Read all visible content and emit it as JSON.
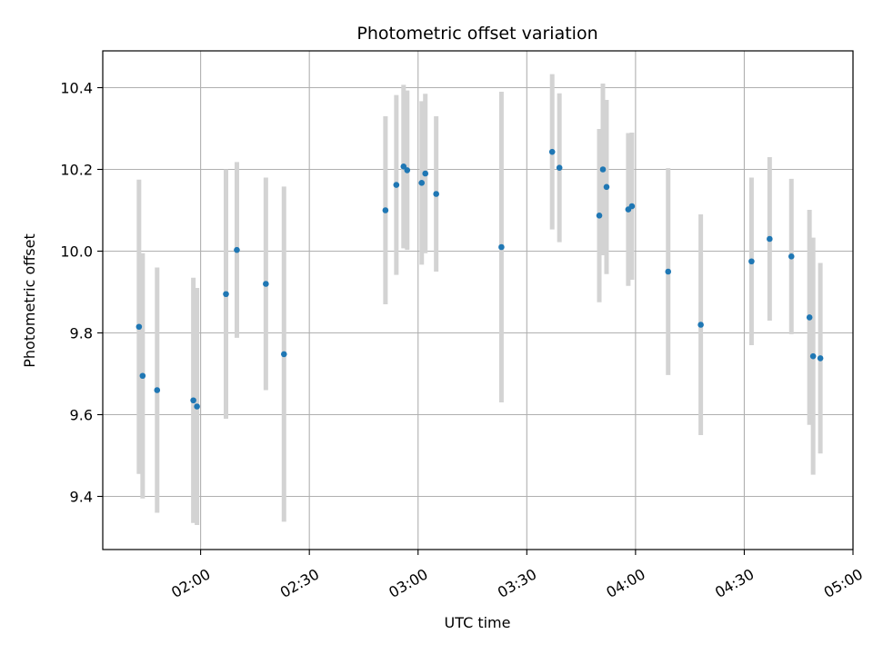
{
  "chart_data": {
    "type": "scatter",
    "title": "Photometric offset variation",
    "xlabel": "UTC time",
    "ylabel": "Photometric offset",
    "x_ticks": [
      "02:00",
      "02:30",
      "03:00",
      "03:30",
      "04:00",
      "04:30",
      "05:00"
    ],
    "y_ticks": [
      "9.4",
      "9.6",
      "9.8",
      "10.0",
      "10.2",
      "10.4"
    ],
    "xlim": [
      "01:33",
      "05:00"
    ],
    "ylim": [
      9.27,
      10.49
    ],
    "grid": true,
    "colors": {
      "marker": "#1f77b4",
      "errorbar": "#d3d3d3",
      "grid": "#b0b0b0"
    },
    "points": [
      {
        "x": "01:43",
        "y": 9.815,
        "err": 0.36
      },
      {
        "x": "01:44",
        "y": 9.695,
        "err": 0.3
      },
      {
        "x": "01:48",
        "y": 9.66,
        "err": 0.3
      },
      {
        "x": "01:58",
        "y": 9.635,
        "err": 0.3
      },
      {
        "x": "01:59",
        "y": 9.62,
        "err": 0.29
      },
      {
        "x": "02:07",
        "y": 9.895,
        "err": 0.305
      },
      {
        "x": "02:10",
        "y": 10.003,
        "err": 0.215
      },
      {
        "x": "02:18",
        "y": 9.92,
        "err": 0.26
      },
      {
        "x": "02:23",
        "y": 9.748,
        "err": 0.41
      },
      {
        "x": "02:51",
        "y": 10.1,
        "err": 0.23
      },
      {
        "x": "02:54",
        "y": 10.162,
        "err": 0.22
      },
      {
        "x": "02:56",
        "y": 10.207,
        "err": 0.2
      },
      {
        "x": "02:57",
        "y": 10.198,
        "err": 0.195
      },
      {
        "x": "03:01",
        "y": 10.167,
        "err": 0.2
      },
      {
        "x": "03:02",
        "y": 10.19,
        "err": 0.195
      },
      {
        "x": "03:05",
        "y": 10.14,
        "err": 0.19
      },
      {
        "x": "03:23",
        "y": 10.01,
        "err": 0.38
      },
      {
        "x": "03:37",
        "y": 10.243,
        "err": 0.19
      },
      {
        "x": "03:39",
        "y": 10.204,
        "err": 0.182
      },
      {
        "x": "03:50",
        "y": 10.087,
        "err": 0.212
      },
      {
        "x": "03:51",
        "y": 10.2,
        "err": 0.21
      },
      {
        "x": "03:52",
        "y": 10.157,
        "err": 0.213
      },
      {
        "x": "03:58",
        "y": 10.102,
        "err": 0.187
      },
      {
        "x": "03:59",
        "y": 10.11,
        "err": 0.18
      },
      {
        "x": "04:09",
        "y": 9.95,
        "err": 0.253
      },
      {
        "x": "04:18",
        "y": 9.82,
        "err": 0.27
      },
      {
        "x": "04:32",
        "y": 9.975,
        "err": 0.205
      },
      {
        "x": "04:37",
        "y": 10.03,
        "err": 0.2
      },
      {
        "x": "04:43",
        "y": 9.987,
        "err": 0.19
      },
      {
        "x": "04:48",
        "y": 9.838,
        "err": 0.263
      },
      {
        "x": "04:49",
        "y": 9.743,
        "err": 0.29
      },
      {
        "x": "04:51",
        "y": 9.738,
        "err": 0.233
      }
    ]
  }
}
